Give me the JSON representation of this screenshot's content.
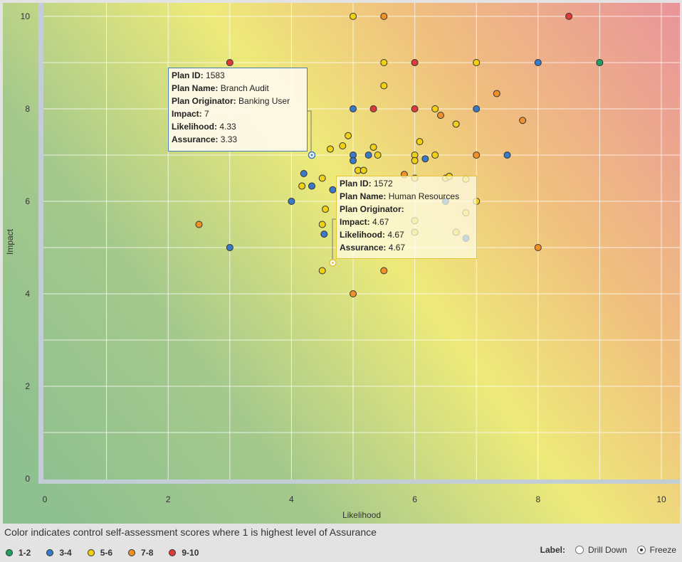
{
  "chart_data": {
    "type": "scatter",
    "xlabel": "Likelihood",
    "ylabel": "Impact",
    "xlim": [
      0,
      10
    ],
    "ylim": [
      0,
      10
    ],
    "x_ticks": [
      "0",
      "2",
      "4",
      "6",
      "8",
      "10"
    ],
    "y_ticks": [
      "0",
      "2",
      "4",
      "6",
      "8",
      "10"
    ],
    "grid": true,
    "background": "diagonal gradient from green (low likelihood/impact) through yellow to red (high likelihood/impact)",
    "colors": {
      "1-2": "#20a060",
      "3-4": "#3a78c8",
      "5-6": "#f0d010",
      "7-8": "#f0902a",
      "9-10": "#e0393a"
    },
    "points": [
      {
        "x": 5.0,
        "y": 10.0,
        "group": "5-6"
      },
      {
        "x": 5.5,
        "y": 10.0,
        "group": "7-8"
      },
      {
        "x": 8.5,
        "y": 10.0,
        "group": "9-10"
      },
      {
        "x": 3.0,
        "y": 9.0,
        "group": "9-10"
      },
      {
        "x": 5.5,
        "y": 9.0,
        "group": "5-6"
      },
      {
        "x": 6.0,
        "y": 9.0,
        "group": "9-10"
      },
      {
        "x": 7.0,
        "y": 9.0,
        "group": "5-6"
      },
      {
        "x": 8.0,
        "y": 9.0,
        "group": "3-4"
      },
      {
        "x": 9.0,
        "y": 9.0,
        "group": "1-2"
      },
      {
        "x": 5.5,
        "y": 8.5,
        "group": "5-6"
      },
      {
        "x": 7.33,
        "y": 8.33,
        "group": "7-8"
      },
      {
        "x": 5.0,
        "y": 8.0,
        "group": "3-4"
      },
      {
        "x": 5.33,
        "y": 8.0,
        "group": "9-10"
      },
      {
        "x": 6.0,
        "y": 8.0,
        "group": "9-10"
      },
      {
        "x": 6.33,
        "y": 8.0,
        "group": "5-6"
      },
      {
        "x": 6.42,
        "y": 7.86,
        "group": "7-8"
      },
      {
        "x": 7.0,
        "y": 8.0,
        "group": "3-4"
      },
      {
        "x": 6.67,
        "y": 7.67,
        "group": "5-6"
      },
      {
        "x": 7.75,
        "y": 7.75,
        "group": "7-8"
      },
      {
        "x": 4.92,
        "y": 7.42,
        "group": "5-6"
      },
      {
        "x": 6.08,
        "y": 7.29,
        "group": "5-6"
      },
      {
        "x": 4.83,
        "y": 7.2,
        "group": "5-6"
      },
      {
        "x": 5.33,
        "y": 7.17,
        "group": "5-6"
      },
      {
        "x": 4.63,
        "y": 7.13,
        "group": "5-6"
      },
      {
        "x": 4.33,
        "y": 7.0,
        "group": "3-4"
      },
      {
        "x": 5.0,
        "y": 7.0,
        "group": "3-4"
      },
      {
        "x": 5.25,
        "y": 7.0,
        "group": "3-4"
      },
      {
        "x": 5.4,
        "y": 7.0,
        "group": "5-6"
      },
      {
        "x": 6.0,
        "y": 7.0,
        "group": "5-6"
      },
      {
        "x": 6.33,
        "y": 7.0,
        "group": "5-6"
      },
      {
        "x": 7.0,
        "y": 7.0,
        "group": "7-8"
      },
      {
        "x": 7.5,
        "y": 7.0,
        "group": "3-4"
      },
      {
        "x": 5.0,
        "y": 6.88,
        "group": "3-4"
      },
      {
        "x": 6.0,
        "y": 6.88,
        "group": "5-6"
      },
      {
        "x": 6.17,
        "y": 6.92,
        "group": "3-4"
      },
      {
        "x": 5.08,
        "y": 6.67,
        "group": "5-6"
      },
      {
        "x": 5.17,
        "y": 6.67,
        "group": "5-6"
      },
      {
        "x": 4.2,
        "y": 6.6,
        "group": "3-4"
      },
      {
        "x": 5.83,
        "y": 6.58,
        "group": "7-8"
      },
      {
        "x": 4.5,
        "y": 6.5,
        "group": "5-6"
      },
      {
        "x": 6.5,
        "y": 6.5,
        "group": "5-6"
      },
      {
        "x": 6.56,
        "y": 6.54,
        "group": "5-6"
      },
      {
        "x": 6.83,
        "y": 6.48,
        "group": "5-6"
      },
      {
        "x": 6.0,
        "y": 6.5,
        "group": "5-6"
      },
      {
        "x": 4.17,
        "y": 6.33,
        "group": "5-6"
      },
      {
        "x": 4.33,
        "y": 6.33,
        "group": "3-4"
      },
      {
        "x": 4.67,
        "y": 6.25,
        "group": "3-4"
      },
      {
        "x": 4.0,
        "y": 6.0,
        "group": "3-4"
      },
      {
        "x": 6.5,
        "y": 6.0,
        "group": "3-4"
      },
      {
        "x": 7.0,
        "y": 6.0,
        "group": "5-6"
      },
      {
        "x": 4.55,
        "y": 5.83,
        "group": "5-6"
      },
      {
        "x": 6.83,
        "y": 5.75,
        "group": "5-6"
      },
      {
        "x": 6.0,
        "y": 5.58,
        "group": "5-6"
      },
      {
        "x": 2.5,
        "y": 5.5,
        "group": "7-8"
      },
      {
        "x": 4.5,
        "y": 5.5,
        "group": "5-6"
      },
      {
        "x": 4.53,
        "y": 5.29,
        "group": "3-4"
      },
      {
        "x": 6.0,
        "y": 5.33,
        "group": "5-6"
      },
      {
        "x": 6.67,
        "y": 5.33,
        "group": "5-6"
      },
      {
        "x": 6.83,
        "y": 5.2,
        "group": "3-4"
      },
      {
        "x": 3.0,
        "y": 5.0,
        "group": "3-4"
      },
      {
        "x": 8.0,
        "y": 5.0,
        "group": "7-8"
      },
      {
        "x": 4.67,
        "y": 4.67,
        "group": "5-6"
      },
      {
        "x": 4.5,
        "y": 4.5,
        "group": "5-6"
      },
      {
        "x": 5.5,
        "y": 4.5,
        "group": "7-8"
      },
      {
        "x": 5.0,
        "y": 4.0,
        "group": "7-8"
      }
    ],
    "tooltips": [
      {
        "plan_id_label": "Plan ID:",
        "plan_id": "1583",
        "plan_name_label": "Plan Name:",
        "plan_name": "Branch Audit",
        "originator_label": "Plan Originator:",
        "originator": "Banking User",
        "impact_label": "Impact:",
        "impact": "7",
        "likelihood_label": "Likelihood:",
        "likelihood": "4.33",
        "assurance_label": "Assurance:",
        "assurance": "3.33",
        "x": 4.33,
        "y": 7.0
      },
      {
        "plan_id_label": "Plan ID:",
        "plan_id": "1572",
        "plan_name_label": "Plan Name:",
        "plan_name": "Human Resources",
        "originator_label": "Plan Originator:",
        "originator": "",
        "impact_label": "Impact:",
        "impact": "4.67",
        "likelihood_label": "Likelihood:",
        "likelihood": "4.67",
        "assurance_label": "Assurance:",
        "assurance": "4.67",
        "x": 4.67,
        "y": 4.67
      }
    ]
  },
  "caption": "Color indicates control self-assessment scores where 1 is highest level of Assurance",
  "legend": [
    {
      "label": "1-2",
      "color": "#20a060"
    },
    {
      "label": "3-4",
      "color": "#3a78c8"
    },
    {
      "label": "5-6",
      "color": "#f0d010"
    },
    {
      "label": "7-8",
      "color": "#f0902a"
    },
    {
      "label": "9-10",
      "color": "#e0393a"
    }
  ],
  "label_control": {
    "label": "Label:",
    "options": [
      "Drill Down",
      "Freeze"
    ],
    "selected": "Freeze"
  }
}
